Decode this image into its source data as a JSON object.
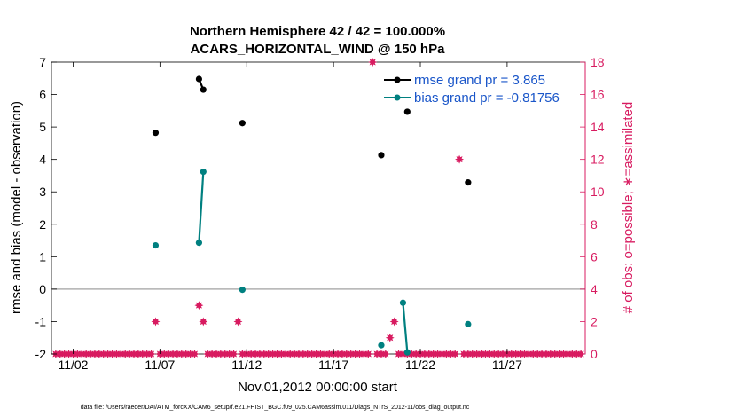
{
  "chart_data": {
    "type": "line",
    "title": "Northern Hemisphere 42 / 42 = 100.000%",
    "subtitle": "ACARS_HORIZONTAL_WIND @ 150 hPa",
    "xlabel": "Nov.01,2012 00:00:00 start",
    "ylabel_left": "rmse and bias (model - observation)",
    "ylabel_right": "# of obs: o=possible; ∗=assimilated",
    "xlim": [
      0.25,
      31.0
    ],
    "ylim_left": [
      -2,
      7
    ],
    "ylim_right": [
      0,
      18
    ],
    "x_ticks": [
      1.5,
      6.5,
      11.5,
      16.5,
      21.5,
      26.5
    ],
    "x_tick_labels": [
      "11/02",
      "11/07",
      "11/12",
      "11/17",
      "11/22",
      "11/27"
    ],
    "y_ticks_left": [
      "-2",
      "-1",
      "0",
      "1",
      "2",
      "3",
      "4",
      "5",
      "6",
      "7"
    ],
    "y_ticks_right": [
      "0",
      "2",
      "4",
      "6",
      "8",
      "10",
      "12",
      "14",
      "16",
      "18"
    ],
    "grid": false,
    "zero_line": 0,
    "legend_position": "top-right",
    "colors": {
      "rmse": "#000000",
      "bias": "#008080",
      "obs": "#d81b60",
      "right_axis": "#d81b60",
      "legend_text": "#1a56c9",
      "zero_line": "#b0b0b0"
    },
    "series": [
      {
        "name": "rmse grand pr = 3.865",
        "axis": "left",
        "segments": [
          [
            [
              6.25,
              4.82
            ]
          ],
          [
            [
              8.75,
              6.48
            ],
            [
              9.0,
              6.15
            ]
          ],
          [
            [
              11.25,
              5.12
            ]
          ],
          [
            [
              19.25,
              4.13
            ]
          ],
          [
            [
              20.75,
              5.47
            ]
          ],
          [
            [
              24.25,
              3.29
            ]
          ]
        ]
      },
      {
        "name": "bias grand pr = -0.81756",
        "axis": "left",
        "segments": [
          [
            [
              6.25,
              1.35
            ]
          ],
          [
            [
              8.75,
              1.43
            ],
            [
              9.0,
              3.62
            ]
          ],
          [
            [
              11.25,
              -0.02
            ]
          ],
          [
            [
              19.25,
              -1.73
            ]
          ],
          [
            [
              20.5,
              -0.42
            ],
            [
              20.75,
              -1.95
            ]
          ],
          [
            [
              24.25,
              -1.08
            ]
          ]
        ]
      },
      {
        "name": "obs assimilated",
        "axis": "right",
        "x_start": 0.5,
        "x_step": 0.25,
        "counts": [
          0,
          0,
          0,
          0,
          0,
          0,
          0,
          0,
          0,
          0,
          0,
          0,
          0,
          0,
          0,
          0,
          0,
          0,
          0,
          0,
          0,
          0,
          0,
          2,
          0,
          0,
          0,
          0,
          0,
          0,
          0,
          0,
          0,
          3,
          2,
          0,
          0,
          0,
          0,
          0,
          0,
          0,
          2,
          0,
          0,
          0,
          0,
          0,
          0,
          0,
          0,
          0,
          0,
          0,
          0,
          0,
          0,
          0,
          0,
          0,
          0,
          0,
          0,
          0,
          0,
          0,
          0,
          0,
          0,
          0,
          0,
          0,
          0,
          18,
          0,
          0,
          0,
          1,
          2,
          0,
          0,
          0,
          0,
          0,
          0,
          0,
          0,
          0,
          0,
          0,
          0,
          0,
          0,
          12,
          0,
          0,
          0,
          0,
          0,
          0,
          0,
          0,
          0,
          0,
          0,
          0,
          0,
          0,
          0,
          0,
          0,
          0,
          0,
          0,
          0,
          0,
          0,
          0,
          0,
          0,
          0,
          0
        ]
      }
    ]
  },
  "footer": "data file: /Users/raeder/DAI/ATM_forcXX/CAM6_setup/f.e21.FHIST_BGC.f09_025.CAM6assim.011/Diags_NTrS_2012-11/obs_diag_output.nc"
}
